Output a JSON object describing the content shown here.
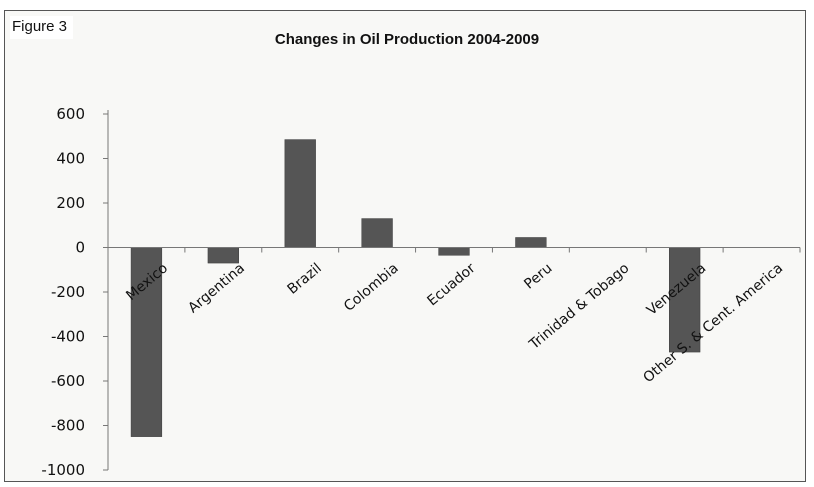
{
  "figure_label": "Figure 3",
  "chart_data": {
    "type": "bar",
    "title": "Changes in Oil Production 2004-2009",
    "xlabel": "",
    "ylabel": "",
    "categories": [
      "Mexico",
      "Argentina",
      "Brazil",
      "Colombia",
      "Ecuador",
      "Peru",
      "Trinidad & Tobago",
      "Venezuela",
      "Other S. & Cent. America"
    ],
    "values": [
      -850,
      -70,
      485,
      130,
      -35,
      45,
      0,
      -470,
      0
    ],
    "ylim": [
      -1000,
      600
    ],
    "yticks": [
      600,
      400,
      200,
      0,
      -200,
      -400,
      -600,
      -800,
      -1000
    ],
    "grid": false,
    "bar_color": "#555555"
  }
}
